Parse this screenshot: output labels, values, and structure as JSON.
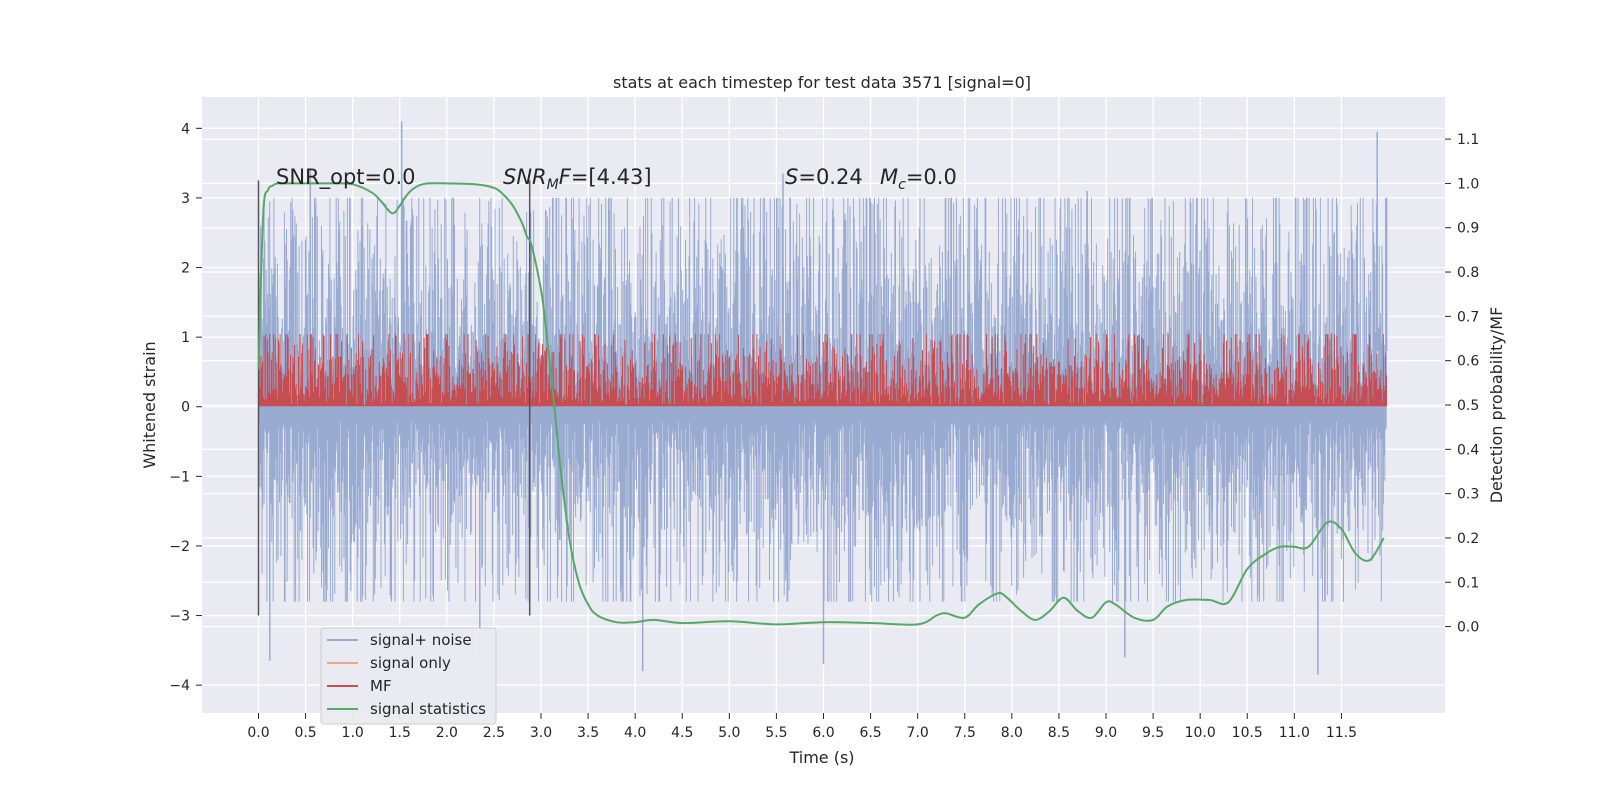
{
  "chart_data": {
    "type": "line",
    "title": "stats at each timestep for test data 3571 [signal=0]",
    "xlabel": "Time (s)",
    "ylabel": "Whitened strain",
    "y2label": "Detection probability/MF",
    "xlim": [
      -0.6,
      12.6
    ],
    "ylim": [
      -4.4,
      4.45
    ],
    "y2lim": [
      -0.195,
      1.195
    ],
    "xticks": [
      "0.0",
      "0.5",
      "1.0",
      "1.5",
      "2.0",
      "2.5",
      "3.0",
      "3.5",
      "4.0",
      "4.5",
      "5.0",
      "5.5",
      "6.0",
      "6.5",
      "7.0",
      "7.5",
      "8.0",
      "8.5",
      "9.0",
      "9.5",
      "10.0",
      "10.5",
      "11.0",
      "11.5"
    ],
    "yticks": [
      "4",
      "3",
      "2",
      "1",
      "0",
      "−1",
      "−2",
      "−3",
      "−4"
    ],
    "y2ticks": [
      "1.1",
      "1.0",
      "0.9",
      "0.8",
      "0.7",
      "0.6",
      "0.5",
      "0.4",
      "0.3",
      "0.2",
      "0.1",
      "0.0"
    ],
    "grid": true,
    "legend_position": "lower-left",
    "annotations": {
      "snr_opt": "SNR_opt=0.0",
      "snr_mf_sym": "SNR",
      "snr_mf_sub": "M",
      "snr_mf_rest": "F=[4.43]",
      "s_sym": "S",
      "s_rest": "=0.24",
      "mc_sym": "M",
      "mc_sub": "c",
      "mc_rest": "=0.0"
    },
    "vertical_lines": [
      0.0,
      2.88
    ],
    "series": [
      {
        "name": "signal+ noise",
        "color": "#9aabd1",
        "style": "dense noise, white gaussian",
        "x_range": [
          0.0,
          11.98
        ],
        "typical_range": [
          -2.4,
          2.6
        ],
        "peaks": [
          [
            1.52,
            4.1
          ],
          [
            11.88,
            3.95
          ],
          [
            0.55,
            3.4
          ],
          [
            5.57,
            3.35
          ],
          [
            8.8,
            3.1
          ],
          [
            11.98,
            3.0
          ],
          [
            11.25,
            -3.85
          ],
          [
            4.08,
            -3.8
          ],
          [
            0.12,
            -3.65
          ],
          [
            6.0,
            -3.7
          ],
          [
            2.35,
            -3.65
          ],
          [
            9.2,
            -3.6
          ]
        ]
      },
      {
        "name": "signal only",
        "color": "#e8a98e",
        "values": []
      },
      {
        "name": "MF",
        "color": "#c44e52",
        "axis": "right",
        "x_range": [
          0.0,
          11.98
        ],
        "typical_range": [
          0.5,
          0.63
        ],
        "max": 0.66
      },
      {
        "name": "signal statistics",
        "color": "#55a868",
        "axis": "right",
        "x": [
          0.0,
          0.05,
          0.1,
          0.15,
          0.2,
          0.3,
          0.5,
          0.8,
          1.0,
          1.2,
          1.3,
          1.4,
          1.45,
          1.5,
          1.6,
          1.7,
          1.8,
          2.0,
          2.3,
          2.5,
          2.6,
          2.7,
          2.8,
          2.85,
          2.9,
          3.0,
          3.05,
          3.1,
          3.15,
          3.2,
          3.3,
          3.4,
          3.5,
          3.6,
          3.8,
          4.0,
          4.2,
          4.5,
          5.0,
          5.5,
          6.0,
          6.5,
          7.0,
          7.2,
          7.3,
          7.5,
          7.65,
          7.85,
          7.95,
          8.1,
          8.25,
          8.4,
          8.55,
          8.7,
          8.85,
          9.0,
          9.1,
          9.3,
          9.5,
          9.65,
          9.85,
          10.1,
          10.3,
          10.5,
          10.7,
          10.85,
          11.0,
          11.15,
          11.35,
          11.5,
          11.65,
          11.8,
          11.95
        ],
        "values": [
          0.58,
          0.93,
          0.985,
          0.995,
          1.0,
          1.0,
          1.0,
          1.0,
          0.998,
          0.98,
          0.96,
          0.935,
          0.935,
          0.95,
          0.98,
          0.995,
          1.0,
          1.0,
          0.998,
          0.99,
          0.975,
          0.95,
          0.91,
          0.88,
          0.86,
          0.76,
          0.68,
          0.58,
          0.48,
          0.37,
          0.2,
          0.1,
          0.05,
          0.025,
          0.01,
          0.01,
          0.015,
          0.008,
          0.012,
          0.005,
          0.01,
          0.008,
          0.005,
          0.025,
          0.03,
          0.02,
          0.05,
          0.075,
          0.065,
          0.035,
          0.015,
          0.035,
          0.065,
          0.035,
          0.02,
          0.055,
          0.05,
          0.02,
          0.015,
          0.045,
          0.06,
          0.06,
          0.055,
          0.13,
          0.165,
          0.18,
          0.18,
          0.18,
          0.235,
          0.22,
          0.165,
          0.15,
          0.2
        ]
      }
    ]
  }
}
